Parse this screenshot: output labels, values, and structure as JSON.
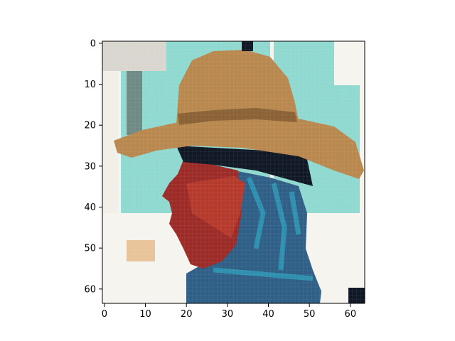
{
  "chart_data": {
    "type": "heatmap",
    "title": "",
    "xlabel": "",
    "ylabel": "",
    "xlim": [
      -0.5,
      63.5
    ],
    "ylim": [
      63.5,
      -0.5
    ],
    "x_ticks": [
      0,
      10,
      20,
      30,
      40,
      50,
      60
    ],
    "y_ticks": [
      0,
      10,
      20,
      30,
      40,
      50,
      60
    ],
    "image_size": [
      64,
      64
    ],
    "image_description": "Pixelated low-resolution color image: profile of a person wearing a tan cowboy hat, red face mask and blue scarf, teal and white background",
    "colors": {
      "background_teal": "#8fd9d0",
      "background_white": "#f6f4ee",
      "hat": "#b9884f",
      "hat_shadow": "#8a6236",
      "face_red": "#9c2b27",
      "mask_red": "#b53a2c",
      "scarf_blue": "#2f5f86",
      "scarf_teal": "#2e8fae",
      "dark": "#101826",
      "ground": "#e9c49a"
    }
  }
}
